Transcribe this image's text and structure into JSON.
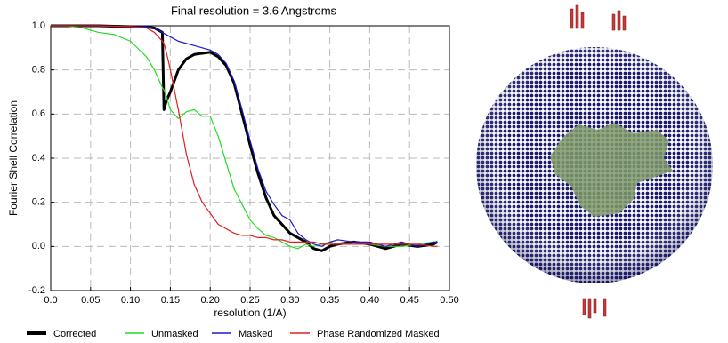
{
  "chart_data": {
    "type": "line",
    "title": "Final resolution =   3.6 Angstroms",
    "x_label": "resolution (1/A)",
    "y_label": "Fourier Shell Correlation",
    "x": [
      0,
      0.02,
      0.04,
      0.06,
      0.08,
      0.1,
      0.12,
      0.13,
      0.14,
      0.142,
      0.145,
      0.15,
      0.16,
      0.17,
      0.18,
      0.19,
      0.2,
      0.21,
      0.22,
      0.23,
      0.24,
      0.25,
      0.26,
      0.27,
      0.28,
      0.29,
      0.3,
      0.31,
      0.32,
      0.33,
      0.34,
      0.35,
      0.36,
      0.38,
      0.4,
      0.42,
      0.44,
      0.46,
      0.48,
      0.485
    ],
    "series": [
      {
        "name": "Corrected",
        "color": "#000000",
        "width": 3,
        "values": [
          1.0,
          1.0,
          1.0,
          1.0,
          0.998,
          0.996,
          0.995,
          0.99,
          0.97,
          0.62,
          0.66,
          0.7,
          0.8,
          0.85,
          0.87,
          0.875,
          0.88,
          0.86,
          0.82,
          0.74,
          0.6,
          0.46,
          0.33,
          0.22,
          0.14,
          0.1,
          0.06,
          0.04,
          0.02,
          -0.01,
          -0.02,
          0.0,
          0.01,
          0.02,
          0.01,
          -0.01,
          0.01,
          0.0,
          0.01,
          0.02
        ]
      },
      {
        "name": "Unmasked",
        "color": "#22dd22",
        "width": 1.2,
        "values": [
          1.0,
          1.0,
          0.99,
          0.97,
          0.96,
          0.93,
          0.86,
          0.8,
          0.72,
          0.71,
          0.68,
          0.62,
          0.58,
          0.61,
          0.62,
          0.59,
          0.59,
          0.5,
          0.38,
          0.26,
          0.19,
          0.12,
          0.08,
          0.05,
          0.04,
          0.02,
          0.0,
          -0.01,
          0.01,
          0.0,
          0.01,
          0.02,
          0.01,
          0.01,
          0.01,
          0.0,
          0.0,
          0.01,
          0.02,
          0.02
        ]
      },
      {
        "name": "Masked",
        "color": "#1a1acc",
        "width": 1.2,
        "values": [
          1.0,
          1.0,
          1.0,
          1.0,
          0.998,
          0.996,
          0.995,
          0.99,
          0.97,
          0.965,
          0.96,
          0.95,
          0.93,
          0.92,
          0.91,
          0.9,
          0.89,
          0.87,
          0.83,
          0.75,
          0.62,
          0.48,
          0.35,
          0.25,
          0.19,
          0.14,
          0.12,
          0.06,
          0.03,
          0.01,
          0.0,
          0.02,
          0.03,
          0.02,
          0.02,
          0.0,
          0.02,
          0.0,
          0.02,
          0.02
        ]
      },
      {
        "name": "Phase Randomized Masked",
        "color": "#e02020",
        "width": 1.2,
        "values": [
          1.0,
          1.0,
          1.0,
          1.0,
          0.998,
          0.996,
          0.99,
          0.97,
          0.93,
          0.92,
          0.88,
          0.8,
          0.62,
          0.42,
          0.28,
          0.2,
          0.15,
          0.1,
          0.08,
          0.06,
          0.05,
          0.05,
          0.04,
          0.04,
          0.03,
          0.03,
          0.02,
          0.02,
          0.02,
          0.02,
          0.01,
          0.01,
          0.01,
          0.01,
          0.01,
          0.01,
          0.01,
          0.01,
          0.0,
          0.0
        ]
      }
    ],
    "xlim": [
      0,
      0.5
    ],
    "ylim": [
      -0.2,
      1.0
    ],
    "xticks": [
      {
        "value": 0,
        "label": "0.0"
      },
      0.05,
      {
        "value": 0.1,
        "label": "0.10"
      },
      0.15,
      {
        "value": 0.2,
        "label": "0.20"
      },
      0.25,
      {
        "value": 0.3,
        "label": "0.30"
      },
      0.35,
      {
        "value": 0.4,
        "label": "0.40"
      },
      0.45,
      {
        "value": 0.5,
        "label": "0.50"
      }
    ],
    "yticks": [
      -0.2,
      {
        "value": 0,
        "label": "0.0"
      },
      0.2,
      0.4,
      0.6,
      0.8,
      {
        "value": 1,
        "label": "1.0"
      }
    ],
    "grid": true
  }
}
